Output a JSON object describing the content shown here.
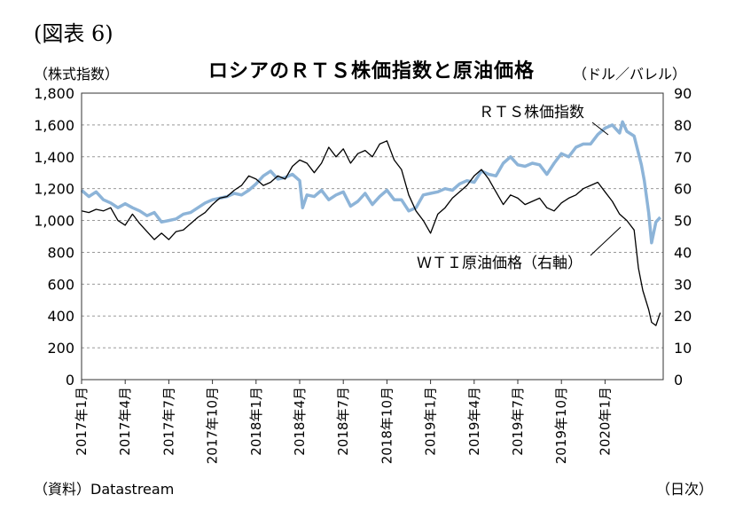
{
  "figure_label": "(図表 6)",
  "title": "ロシアのＲＴＳ株価指数と原油価格",
  "left_unit": "（株式指数）",
  "right_unit": "（ドル／バレル）",
  "source": "（資料）Datastream",
  "x_unit": "（日次）",
  "chart_data": {
    "type": "line",
    "title": "ロシアのＲＴＳ株価指数と原油価格",
    "y_left": {
      "label": "（株式指数）",
      "range": [
        0,
        1800
      ],
      "ticks": [
        "0",
        "200",
        "400",
        "600",
        "800",
        "1,000",
        "1,200",
        "1,400",
        "1,600",
        "1,800"
      ]
    },
    "y_right": {
      "label": "（ドル／バレル）",
      "range": [
        0,
        90
      ],
      "ticks": [
        "0",
        "10",
        "20",
        "30",
        "40",
        "50",
        "60",
        "70",
        "80",
        "90"
      ]
    },
    "x_ticks": [
      "2017年1月",
      "2017年4月",
      "2017年7月",
      "2017年10月",
      "2018年1月",
      "2018年4月",
      "2018年7月",
      "2018年10月",
      "2019年1月",
      "2019年4月",
      "2019年7月",
      "2019年10月",
      "2020年1月"
    ],
    "x_range_months": [
      0,
      40
    ],
    "grid": true,
    "series": [
      {
        "name": "ＲＴＳ株価指数",
        "axis": "left",
        "color": "#8db4d8",
        "annotation": "ＲＴＳ株価指数",
        "points": [
          [
            0,
            1190
          ],
          [
            0.5,
            1150
          ],
          [
            1,
            1180
          ],
          [
            1.5,
            1130
          ],
          [
            2,
            1110
          ],
          [
            2.5,
            1080
          ],
          [
            3,
            1105
          ],
          [
            3.5,
            1080
          ],
          [
            4,
            1060
          ],
          [
            4.5,
            1030
          ],
          [
            5,
            1050
          ],
          [
            5.5,
            990
          ],
          [
            6,
            1000
          ],
          [
            6.5,
            1010
          ],
          [
            7,
            1040
          ],
          [
            7.5,
            1050
          ],
          [
            8,
            1080
          ],
          [
            8.5,
            1110
          ],
          [
            9,
            1130
          ],
          [
            9.5,
            1140
          ],
          [
            10,
            1150
          ],
          [
            10.5,
            1170
          ],
          [
            11,
            1160
          ],
          [
            11.5,
            1190
          ],
          [
            12,
            1230
          ],
          [
            12.5,
            1280
          ],
          [
            13,
            1310
          ],
          [
            13.5,
            1260
          ],
          [
            14,
            1270
          ],
          [
            14.5,
            1290
          ],
          [
            15,
            1250
          ],
          [
            15.2,
            1080
          ],
          [
            15.5,
            1160
          ],
          [
            16,
            1150
          ],
          [
            16.5,
            1190
          ],
          [
            17,
            1130
          ],
          [
            17.5,
            1160
          ],
          [
            18,
            1180
          ],
          [
            18.5,
            1090
          ],
          [
            19,
            1120
          ],
          [
            19.5,
            1170
          ],
          [
            20,
            1100
          ],
          [
            20.5,
            1150
          ],
          [
            21,
            1190
          ],
          [
            21.5,
            1130
          ],
          [
            22,
            1130
          ],
          [
            22.5,
            1060
          ],
          [
            23,
            1080
          ],
          [
            23.5,
            1160
          ],
          [
            24,
            1170
          ],
          [
            24.5,
            1180
          ],
          [
            25,
            1200
          ],
          [
            25.5,
            1190
          ],
          [
            26,
            1230
          ],
          [
            26.5,
            1250
          ],
          [
            27,
            1240
          ],
          [
            27.5,
            1310
          ],
          [
            28,
            1290
          ],
          [
            28.5,
            1280
          ],
          [
            29,
            1360
          ],
          [
            29.5,
            1400
          ],
          [
            30,
            1350
          ],
          [
            30.5,
            1340
          ],
          [
            31,
            1360
          ],
          [
            31.5,
            1350
          ],
          [
            32,
            1290
          ],
          [
            32.5,
            1360
          ],
          [
            33,
            1420
          ],
          [
            33.5,
            1400
          ],
          [
            34,
            1460
          ],
          [
            34.5,
            1480
          ],
          [
            35,
            1480
          ],
          [
            35.5,
            1540
          ],
          [
            36,
            1580
          ],
          [
            36.5,
            1600
          ],
          [
            37,
            1550
          ],
          [
            37.2,
            1620
          ],
          [
            37.5,
            1560
          ],
          [
            38,
            1530
          ],
          [
            38.5,
            1350
          ],
          [
            38.7,
            1250
          ],
          [
            39,
            1050
          ],
          [
            39.2,
            860
          ],
          [
            39.5,
            990
          ],
          [
            39.8,
            1020
          ]
        ]
      },
      {
        "name": "ＷＴＩ原油価格（右軸）",
        "axis": "right",
        "color": "#000000",
        "annotation": "ＷＴＩ原油価格（右軸）",
        "points": [
          [
            0,
            53
          ],
          [
            0.5,
            52.5
          ],
          [
            1,
            53.5
          ],
          [
            1.5,
            53
          ],
          [
            2,
            54
          ],
          [
            2.5,
            50
          ],
          [
            3,
            48.5
          ],
          [
            3.5,
            52
          ],
          [
            4,
            49
          ],
          [
            4.5,
            46.5
          ],
          [
            5,
            44
          ],
          [
            5.5,
            46
          ],
          [
            6,
            44
          ],
          [
            6.5,
            46.5
          ],
          [
            7,
            47
          ],
          [
            7.5,
            49
          ],
          [
            8,
            51
          ],
          [
            8.5,
            52.5
          ],
          [
            9,
            55
          ],
          [
            9.5,
            57
          ],
          [
            10,
            57.5
          ],
          [
            10.5,
            59.5
          ],
          [
            11,
            61
          ],
          [
            11.5,
            64
          ],
          [
            12,
            63
          ],
          [
            12.5,
            61
          ],
          [
            13,
            62
          ],
          [
            13.5,
            64
          ],
          [
            14,
            63
          ],
          [
            14.5,
            67
          ],
          [
            15,
            69
          ],
          [
            15.5,
            68
          ],
          [
            16,
            65
          ],
          [
            16.5,
            68
          ],
          [
            17,
            73
          ],
          [
            17.5,
            70
          ],
          [
            18,
            72.5
          ],
          [
            18.5,
            68
          ],
          [
            19,
            71
          ],
          [
            19.5,
            72
          ],
          [
            20,
            70
          ],
          [
            20.5,
            74
          ],
          [
            21,
            75
          ],
          [
            21.5,
            69
          ],
          [
            22,
            66
          ],
          [
            22.5,
            58
          ],
          [
            23,
            53
          ],
          [
            23.5,
            50
          ],
          [
            24,
            46
          ],
          [
            24.5,
            52
          ],
          [
            25,
            54
          ],
          [
            25.5,
            57
          ],
          [
            26,
            59
          ],
          [
            26.5,
            61
          ],
          [
            27,
            64
          ],
          [
            27.5,
            66
          ],
          [
            28,
            63
          ],
          [
            28.5,
            59
          ],
          [
            29,
            55
          ],
          [
            29.5,
            58
          ],
          [
            30,
            57
          ],
          [
            30.5,
            55
          ],
          [
            31,
            56
          ],
          [
            31.5,
            57
          ],
          [
            32,
            54
          ],
          [
            32.5,
            53
          ],
          [
            33,
            55.5
          ],
          [
            33.5,
            57
          ],
          [
            34,
            58
          ],
          [
            34.5,
            60
          ],
          [
            35,
            61
          ],
          [
            35.5,
            62
          ],
          [
            36,
            59
          ],
          [
            36.5,
            56
          ],
          [
            37,
            52
          ],
          [
            37.5,
            50
          ],
          [
            38,
            47
          ],
          [
            38.3,
            35
          ],
          [
            38.6,
            28
          ],
          [
            39,
            22
          ],
          [
            39.2,
            18
          ],
          [
            39.5,
            17
          ],
          [
            39.8,
            21
          ]
        ]
      }
    ]
  }
}
